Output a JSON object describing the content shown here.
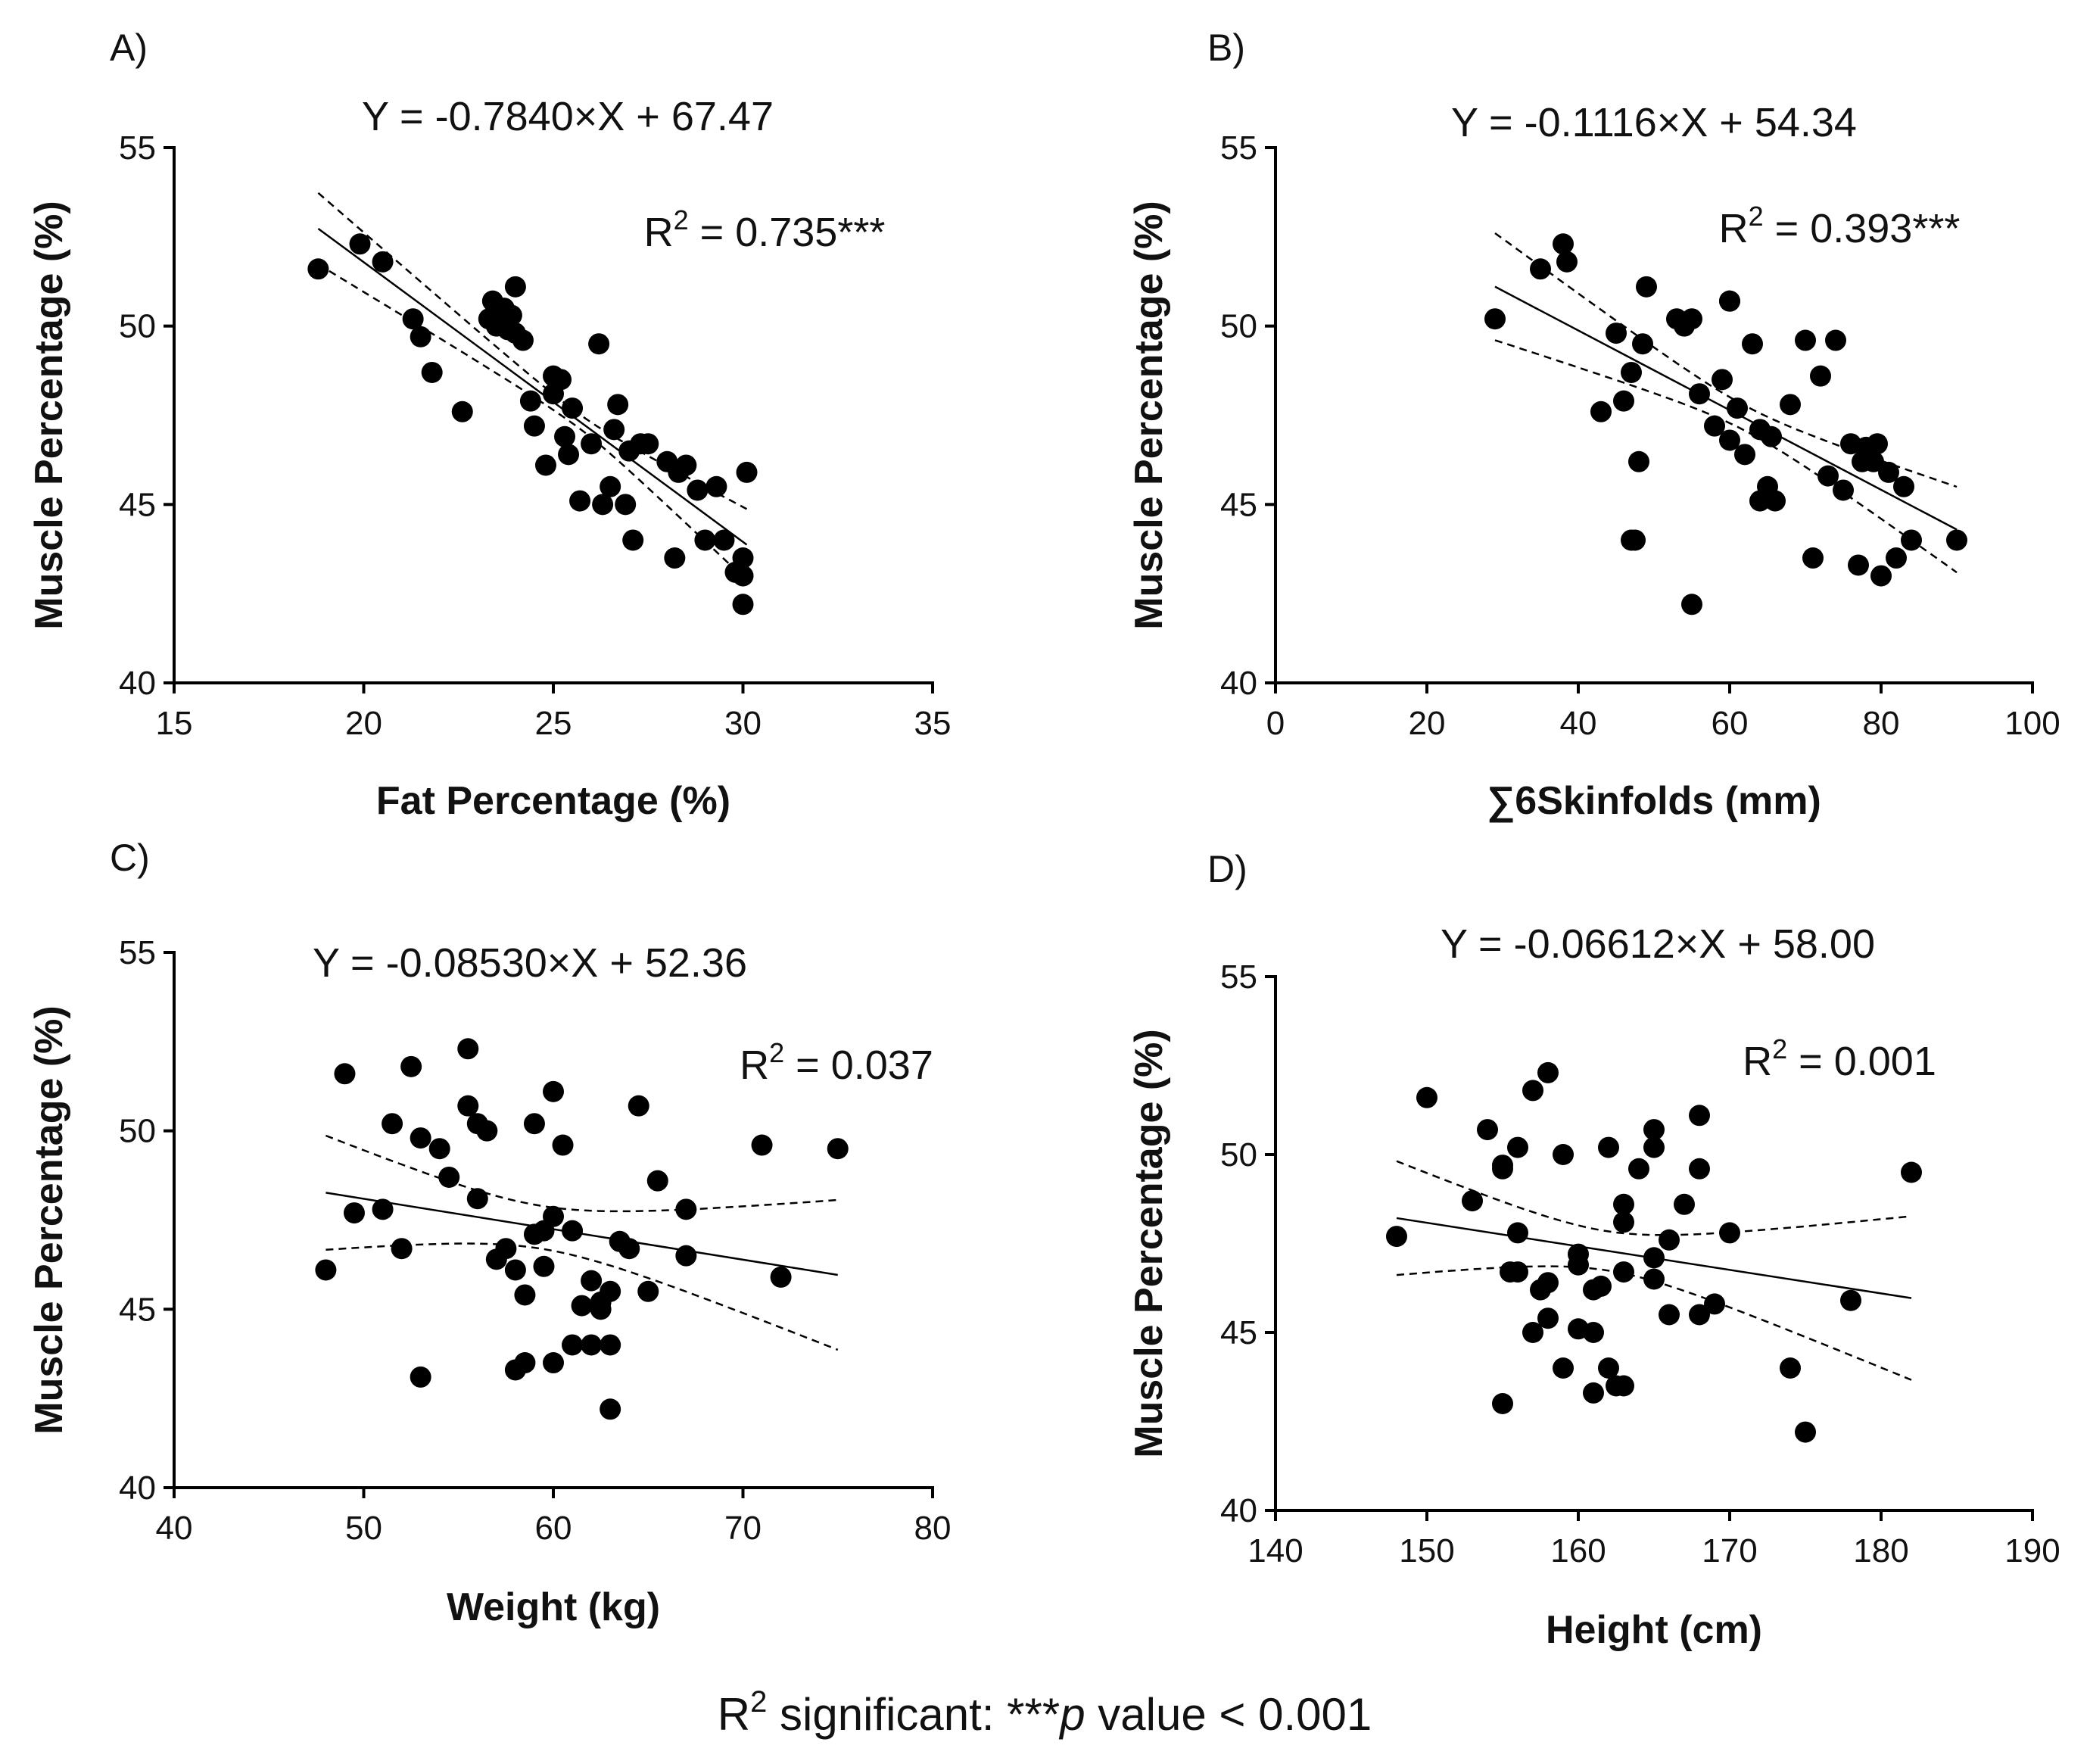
{
  "footnote": {
    "prefix": "R",
    "sup": "2",
    "text": " significant: ***",
    "p": "p",
    "rest": " value < 0.001"
  },
  "chart_data": [
    {
      "type": "scatter",
      "panel": "A)",
      "equation": "Y = -0.7840×X + 67.47",
      "r2_label": "R",
      "r2_sup": "2",
      "r2_value": " = 0.735***",
      "xlabel": "Fat Percentage (%)",
      "ylabel": "Muscle Percentage (%)",
      "xlim": [
        15,
        35
      ],
      "ylim": [
        40,
        55
      ],
      "xticks": [
        15,
        20,
        25,
        30,
        35
      ],
      "yticks": [
        40,
        45,
        50,
        55
      ],
      "slope": -0.784,
      "intercept": 67.47,
      "fit_range": [
        18.8,
        30.1
      ],
      "ci_width": [
        1.0,
        0.2,
        1.0
      ],
      "x": [
        18.8,
        19.9,
        20.5,
        21.3,
        21.5,
        21.8,
        22.6,
        23.4,
        23.5,
        23.7,
        23.8,
        23.9,
        24.0,
        24.2,
        24.4,
        24.5,
        24.8,
        25.0,
        25.2,
        25.3,
        25.4,
        25.5,
        25.7,
        26.0,
        26.2,
        26.3,
        26.5,
        26.6,
        26.7,
        26.9,
        27.0,
        27.1,
        27.3,
        27.5,
        28.0,
        28.2,
        28.3,
        28.5,
        28.8,
        29.0,
        29.3,
        29.5,
        29.8,
        30.0,
        30.0,
        30.0,
        30.1,
        23.3,
        24.0,
        25.0
      ],
      "y": [
        51.6,
        52.3,
        51.8,
        50.2,
        49.7,
        48.7,
        47.6,
        50.7,
        50.0,
        50.5,
        49.9,
        50.3,
        51.1,
        49.6,
        47.9,
        47.2,
        46.1,
        48.6,
        48.5,
        46.9,
        46.4,
        47.7,
        45.1,
        46.7,
        49.5,
        45.0,
        45.5,
        47.1,
        47.8,
        45.0,
        46.5,
        44.0,
        46.7,
        46.7,
        46.2,
        43.5,
        45.9,
        46.1,
        45.4,
        44.0,
        45.5,
        44.0,
        43.1,
        43.5,
        43.0,
        42.2,
        45.9,
        50.2,
        49.8,
        48.1
      ]
    },
    {
      "type": "scatter",
      "panel": "B)",
      "equation": "Y = -0.1116×X + 54.34",
      "r2_label": "R",
      "r2_sup": "2",
      "r2_value": " = 0.393***",
      "xlabel": "∑6Skinfolds (mm)",
      "ylabel": "Muscle Percentage (%)",
      "xlim": [
        0,
        100
      ],
      "ylim": [
        40,
        55
      ],
      "xticks": [
        0,
        20,
        40,
        60,
        80,
        100
      ],
      "yticks": [
        40,
        45,
        50,
        55
      ],
      "slope": -0.1116,
      "intercept": 54.34,
      "fit_range": [
        29,
        90
      ],
      "ci_width": [
        1.5,
        0.35,
        1.2
      ],
      "x": [
        29,
        35,
        38,
        38.5,
        43,
        45,
        46,
        47,
        47.5,
        48,
        48.5,
        49,
        53,
        54,
        55,
        55,
        56,
        58,
        59,
        60,
        60,
        60,
        61,
        62,
        63,
        64,
        64,
        65,
        65.5,
        66,
        68,
        70,
        71,
        72,
        73,
        74,
        75,
        76,
        77,
        77.5,
        78,
        79,
        80,
        81,
        82,
        83,
        84,
        90,
        79.5,
        47
      ],
      "y": [
        50.2,
        51.6,
        52.3,
        51.8,
        47.6,
        49.8,
        47.9,
        48.7,
        44.0,
        46.2,
        49.5,
        51.1,
        50.2,
        50.0,
        50.2,
        42.2,
        48.1,
        47.2,
        48.5,
        50.7,
        50.7,
        46.8,
        47.7,
        46.4,
        49.5,
        45.1,
        47.1,
        45.5,
        46.9,
        45.1,
        47.8,
        49.6,
        43.5,
        48.6,
        45.8,
        49.6,
        45.4,
        46.7,
        43.3,
        46.2,
        46.6,
        46.2,
        43.0,
        45.9,
        43.5,
        45.5,
        44.0,
        44.0,
        46.7,
        44.0
      ]
    },
    {
      "type": "scatter",
      "panel": "C)",
      "equation": "Y = -0.08530×X + 52.36",
      "r2_label": "R",
      "r2_sup": "2",
      "r2_value": " = 0.037",
      "xlabel": "Weight (kg)",
      "ylabel": "Muscle Percentage (%)",
      "xlim": [
        40,
        80
      ],
      "ylim": [
        40,
        55
      ],
      "xticks": [
        40,
        50,
        60,
        70,
        80
      ],
      "yticks": [
        40,
        45,
        50,
        55
      ],
      "slope": -0.0853,
      "intercept": 52.36,
      "fit_range": [
        48,
        75
      ],
      "ci_width": [
        1.6,
        0.6,
        2.1
      ],
      "x": [
        48,
        49,
        49.5,
        51,
        51.5,
        52,
        52.5,
        53,
        53,
        54,
        54.5,
        55.5,
        55.5,
        56,
        56.5,
        57,
        57.5,
        58,
        58,
        58.5,
        58.5,
        59,
        59,
        59.5,
        60,
        60,
        60,
        60.5,
        61,
        61,
        61.5,
        62,
        62,
        62.5,
        63,
        63,
        63,
        63.5,
        64,
        64.5,
        65,
        65.5,
        67,
        67,
        71,
        72,
        75,
        56,
        59.5,
        62.5
      ],
      "y": [
        46.1,
        51.6,
        47.7,
        47.8,
        50.2,
        46.7,
        51.8,
        49.8,
        43.1,
        49.5,
        48.7,
        50.7,
        52.3,
        48.1,
        50.0,
        46.4,
        46.7,
        46.1,
        43.3,
        45.4,
        43.5,
        50.2,
        47.1,
        46.2,
        51.1,
        47.6,
        43.5,
        49.6,
        44.0,
        47.2,
        45.1,
        44.0,
        45.8,
        45.0,
        45.5,
        42.2,
        44.0,
        46.9,
        46.7,
        50.7,
        45.5,
        48.6,
        47.8,
        46.5,
        49.6,
        45.9,
        49.5,
        50.2,
        47.2,
        45.2
      ]
    },
    {
      "type": "scatter",
      "panel": "D)",
      "equation": "Y = -0.06612×X + 58.00",
      "r2_label": "R",
      "r2_sup": "2",
      "r2_value": " = 0.001",
      "xlabel": "Height (cm)",
      "ylabel": "Muscle Percentage (%)",
      "xlim": [
        140,
        190
      ],
      "ylim": [
        40,
        55
      ],
      "xticks": [
        140,
        150,
        160,
        170,
        180,
        190
      ],
      "yticks": [
        40,
        45,
        50,
        55
      ],
      "slope": -0.06612,
      "intercept": 58.0,
      "fit_range": [
        148,
        182
      ],
      "ci_width": [
        1.6,
        0.55,
        2.3
      ],
      "x": [
        148,
        150,
        153,
        154,
        155,
        155,
        155,
        156,
        156,
        156,
        157,
        157,
        157.5,
        158,
        158,
        158,
        159,
        159,
        160,
        160,
        160,
        161,
        161,
        161,
        162,
        162,
        162.5,
        163,
        163,
        163,
        163,
        164,
        165,
        165,
        165,
        165,
        166,
        166,
        167,
        168,
        168,
        168,
        169,
        170,
        174,
        175,
        178,
        182,
        155.5,
        161.5
      ],
      "y": [
        47.7,
        51.6,
        48.7,
        50.7,
        49.7,
        49.6,
        43.0,
        47.8,
        46.7,
        50.2,
        51.8,
        45.0,
        46.2,
        52.3,
        46.4,
        45.4,
        50.0,
        44.0,
        47.2,
        46.9,
        45.1,
        46.2,
        45.0,
        43.3,
        50.2,
        44.0,
        43.5,
        48.6,
        48.1,
        46.7,
        43.5,
        49.6,
        50.7,
        50.2,
        47.1,
        46.5,
        47.6,
        45.5,
        48.6,
        51.1,
        49.6,
        45.5,
        45.8,
        47.8,
        44.0,
        42.2,
        45.9,
        49.5,
        46.7,
        46.3
      ]
    }
  ]
}
